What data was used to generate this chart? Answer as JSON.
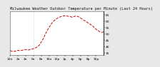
{
  "title": "Milwaukee Weather Outdoor Temperature per Minute (Last 24 Hours)",
  "background_color": "#e8e8e8",
  "plot_bg_color": "#ffffff",
  "line_color": "#cc0000",
  "grid_color": "#aaaaaa",
  "yticks": [
    35,
    40,
    45,
    50,
    55,
    60,
    65
  ],
  "ylim": [
    33,
    68
  ],
  "xlim": [
    0,
    1439
  ],
  "x_values": [
    0,
    30,
    60,
    90,
    120,
    150,
    180,
    210,
    240,
    270,
    300,
    330,
    360,
    390,
    420,
    450,
    480,
    510,
    540,
    570,
    600,
    630,
    660,
    690,
    720,
    750,
    780,
    810,
    840,
    870,
    900,
    930,
    960,
    990,
    1020,
    1050,
    1080,
    1110,
    1140,
    1170,
    1200,
    1230,
    1260,
    1290,
    1320,
    1350,
    1380,
    1410,
    1439
  ],
  "y_values": [
    36.5,
    36.2,
    36.0,
    36.3,
    36.8,
    36.5,
    36.8,
    37.2,
    37.5,
    37.0,
    37.3,
    37.8,
    38.2,
    38.8,
    39.5,
    41.0,
    43.5,
    46.0,
    49.5,
    52.5,
    55.0,
    57.5,
    59.5,
    61.0,
    62.0,
    63.0,
    63.5,
    64.0,
    64.2,
    64.0,
    63.8,
    63.5,
    63.0,
    63.8,
    64.0,
    63.5,
    62.5,
    61.5,
    60.5,
    59.5,
    58.5,
    57.5,
    56.5,
    55.0,
    53.5,
    52.5,
    51.5,
    51.0,
    51.5
  ],
  "vgrid_positions": [
    360
  ],
  "title_fontsize": 3.8,
  "tick_fontsize": 3.2,
  "linewidth": 0.7,
  "linestyle": "--",
  "xtick_positions": [
    0,
    120,
    240,
    360,
    480,
    600,
    720,
    840,
    960,
    1080,
    1200,
    1320
  ],
  "xtick_labels": [
    "12a",
    "2a",
    "4a",
    "6a",
    "8a",
    "10a",
    "12p",
    "2p",
    "4p",
    "6p",
    "8p",
    "10p"
  ]
}
